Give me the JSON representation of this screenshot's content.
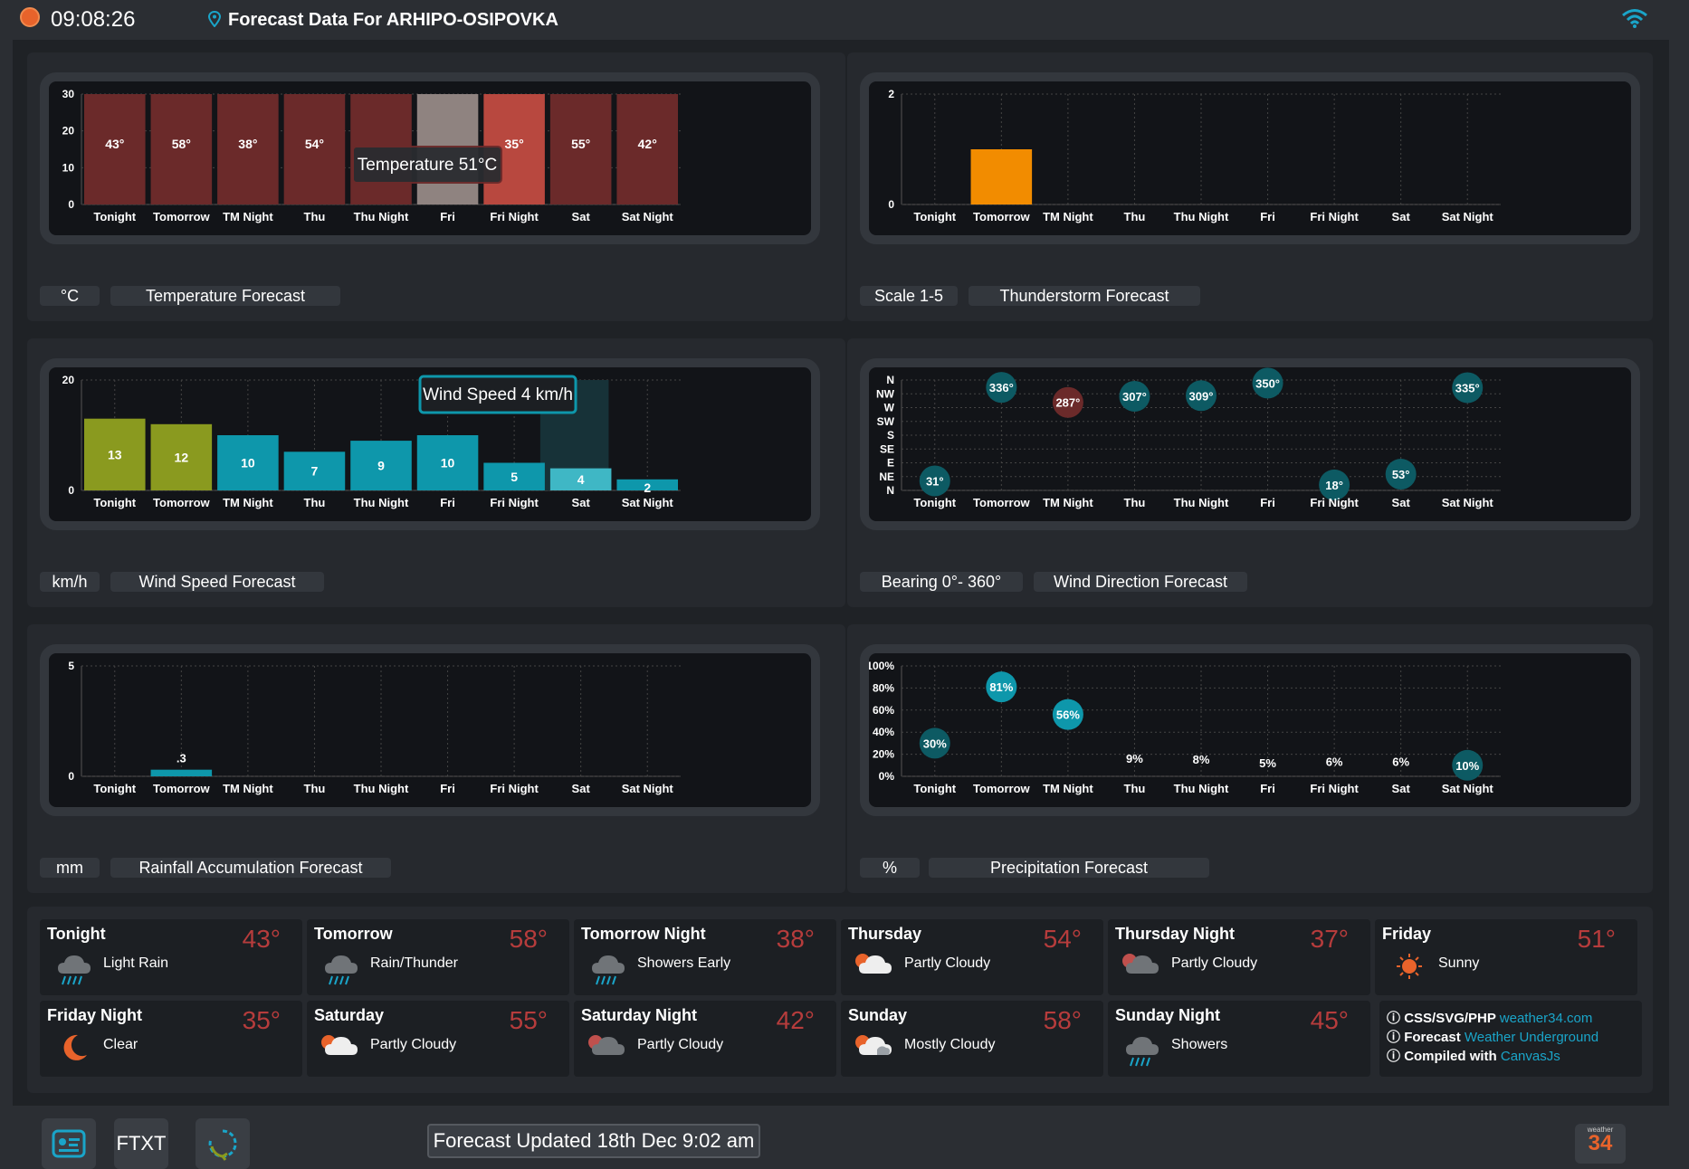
{
  "header": {
    "time": "09:08:26",
    "title": "Forecast Data For ARHIPO-OSIPOVKA"
  },
  "periods": [
    "Tonight",
    "Tomorrow",
    "TM Night",
    "Thu",
    "Thu Night",
    "Fri",
    "Fri Night",
    "Sat",
    "Sat Night"
  ],
  "temperature_panel": {
    "unit_label": "°C",
    "title_label": "Temperature Forecast",
    "tooltip": "Temperature 51°C",
    "bar_labels": [
      "43°",
      "58°",
      "38°",
      "54°",
      "",
      "",
      "35°",
      "55°",
      "42°"
    ]
  },
  "thunder_panel": {
    "unit_label": "Scale 1-5",
    "title_label": "Thunderstorm Forecast"
  },
  "wind_speed_panel": {
    "unit_label": "km/h",
    "title_label": "Wind Speed Forecast",
    "tooltip": "Wind Speed 4 km/h"
  },
  "wind_dir_panel": {
    "unit_label": "Bearing 0°- 360°",
    "title_label": "Wind Direction Forecast",
    "compass_labels": [
      "N",
      "NW",
      "W",
      "SW",
      "S",
      "SE",
      "E",
      "NE",
      "N"
    ]
  },
  "rain_panel": {
    "unit_label": "mm",
    "title_label": "Rainfall Accumulation Forecast",
    "value_labels": [
      "",
      ".3",
      "",
      "",
      "",
      "",
      "",
      "",
      ""
    ]
  },
  "precip_panel": {
    "unit_label": "%",
    "title_label": "Precipitation Forecast"
  },
  "chart_data": [
    {
      "type": "bar",
      "categories": [
        "Tonight",
        "Tomorrow",
        "TM Night",
        "Thu",
        "Thu Night",
        "Fri",
        "Fri Night",
        "Sat",
        "Sat Night"
      ],
      "values": [
        30,
        30,
        30,
        30,
        30,
        30,
        30,
        30,
        30
      ],
      "data_labels": [
        "43°",
        "58°",
        "38°",
        "54°",
        "",
        "",
        "35°",
        "55°",
        "42°"
      ],
      "ylim": [
        0,
        30
      ],
      "yticks": [
        0,
        10,
        20,
        30
      ],
      "colors": {
        "default": "#6b2a2a",
        "highlight": "#b8483f",
        "hover": "#8f8380"
      },
      "highlight_index": 6,
      "hover_index": 5
    },
    {
      "type": "bar",
      "categories": [
        "Tonight",
        "Tomorrow",
        "TM Night",
        "Thu",
        "Thu Night",
        "Fri",
        "Fri Night",
        "Sat",
        "Sat Night"
      ],
      "values": [
        0,
        1,
        0,
        0,
        0,
        0,
        0,
        0,
        0
      ],
      "ylim": [
        0,
        2
      ],
      "yticks": [
        0,
        2
      ],
      "color": "#f28c00"
    },
    {
      "type": "bar",
      "categories": [
        "Tonight",
        "Tomorrow",
        "TM Night",
        "Thu",
        "Thu Night",
        "Fri",
        "Fri Night",
        "Sat",
        "Sat Night"
      ],
      "values": [
        13,
        12,
        10,
        7,
        9,
        10,
        5,
        4,
        2
      ],
      "ylim": [
        0,
        20
      ],
      "yticks": [
        0,
        20
      ],
      "colors": {
        "strong": "#8a9a1f",
        "normal": "#0e97ab",
        "hover": "#3fb7c5"
      },
      "hover_index": 7
    },
    {
      "type": "scatter",
      "categories": [
        "Tonight",
        "Tomorrow",
        "TM Night",
        "Thu",
        "Thu Night",
        "Fri",
        "Fri Night",
        "Sat",
        "Sat Night"
      ],
      "values": [
        31,
        336,
        287,
        307,
        309,
        350,
        null,
        53,
        335
      ],
      "extra_points": [
        {
          "category": "Fri Night",
          "value": 18
        }
      ],
      "value_suffix": "°",
      "ylim": [
        0,
        360
      ]
    },
    {
      "type": "bar",
      "categories": [
        "Tonight",
        "Tomorrow",
        "TM Night",
        "Thu",
        "Thu Night",
        "Fri",
        "Fri Night",
        "Sat",
        "Sat Night"
      ],
      "values": [
        0,
        0.3,
        0,
        0,
        0,
        0,
        0,
        0,
        0
      ],
      "ylim": [
        0,
        5
      ],
      "yticks": [
        0,
        5
      ],
      "color": "#0e97ab"
    },
    {
      "type": "scatter",
      "categories": [
        "Tonight",
        "Tomorrow",
        "TM Night",
        "Thu",
        "Thu Night",
        "Fri",
        "Fri Night",
        "Sat",
        "Sat Night"
      ],
      "values": [
        30,
        81,
        56,
        9,
        8,
        5,
        6,
        6,
        10
      ],
      "value_suffix": "%",
      "ylim": [
        0,
        100
      ],
      "yticks": [
        "0%",
        "20%",
        "40%",
        "60%",
        "80%",
        "100%"
      ]
    }
  ],
  "forecast_cards": [
    {
      "name": "Tonight",
      "temp": "43°",
      "desc": "Light Rain",
      "icon": "rain-cloud-icon"
    },
    {
      "name": "Tomorrow",
      "temp": "58°",
      "desc": "Rain/Thunder",
      "icon": "rain-cloud-icon"
    },
    {
      "name": "Tomorrow Night",
      "temp": "38°",
      "desc": "Showers Early",
      "icon": "rain-cloud-icon"
    },
    {
      "name": "Thursday",
      "temp": "54°",
      "desc": "Partly Cloudy",
      "icon": "partly-cloudy-icon"
    },
    {
      "name": "Thursday Night",
      "temp": "37°",
      "desc": "Partly Cloudy",
      "icon": "partly-cloudy-night-icon"
    },
    {
      "name": "Friday",
      "temp": "51°",
      "desc": "Sunny",
      "icon": "sun-icon"
    },
    {
      "name": "Friday Night",
      "temp": "35°",
      "desc": "Clear",
      "icon": "moon-icon"
    },
    {
      "name": "Saturday",
      "temp": "55°",
      "desc": "Partly Cloudy",
      "icon": "partly-cloudy-icon"
    },
    {
      "name": "Saturday Night",
      "temp": "42°",
      "desc": "Partly Cloudy",
      "icon": "partly-cloudy-night-icon"
    },
    {
      "name": "Sunday",
      "temp": "58°",
      "desc": "Mostly Cloudy",
      "icon": "mostly-cloudy-icon"
    },
    {
      "name": "Sunday Night",
      "temp": "45°",
      "desc": "Showers",
      "icon": "rain-cloud-icon"
    }
  ],
  "credits": {
    "line1_prefix": "CSS/SVG/PHP ",
    "line1_link": "weather34.com",
    "line2_prefix": "Forecast ",
    "line2_link": "Weather Underground",
    "line3_prefix": "Compiled with ",
    "line3_link": "CanvasJs",
    "info_symbol": "ⓘ"
  },
  "footer": {
    "ftxt_label": "FTXT",
    "updated_text": "Forecast Updated 18th Dec 9:02 am",
    "logo_small": "weather",
    "logo_number": "34"
  },
  "colors": {
    "accent": "#0e97ab",
    "temp_red": "#b63c3c",
    "orange": "#e8632b"
  }
}
